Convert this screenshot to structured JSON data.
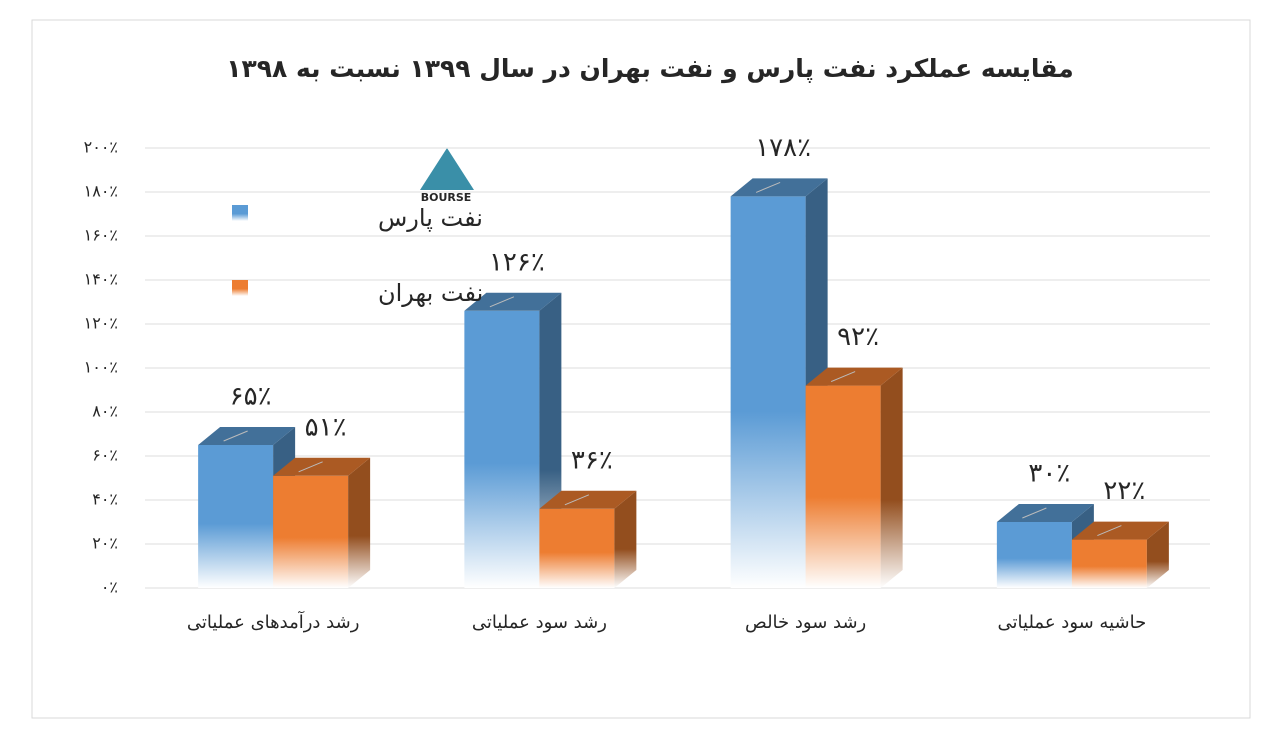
{
  "chart_data": {
    "type": "bar3d",
    "title": "مقایسه عملکرد نفت پارس و نفت بهران در سال ۱۳۹۹ نسبت به ۱۳۹۸",
    "logo": "BOURSE",
    "categories": [
      "رشد درآمدهای عملیاتی",
      "رشد سود عملیاتی",
      "رشد سود خالص",
      "حاشیه سود عملیاتی"
    ],
    "series": [
      {
        "name": "نفت پارس",
        "color": "#5b9bd5",
        "values": [
          65,
          126,
          178,
          30
        ],
        "value_labels": [
          "۶۵٪",
          "۱۲۶٪",
          "۱۷۸٪",
          "۳۰٪"
        ]
      },
      {
        "name": "نفت بهران",
        "color": "#ed7d31",
        "values": [
          51,
          36,
          92,
          22
        ],
        "value_labels": [
          "۵۱٪",
          "۳۶٪",
          "۹۲٪",
          "۲۲٪"
        ]
      }
    ],
    "ylim": [
      0,
      200
    ],
    "yticks": [
      {
        "value": 0,
        "label": "۰٪"
      },
      {
        "value": 20,
        "label": "۲۰٪"
      },
      {
        "value": 40,
        "label": "۴۰٪"
      },
      {
        "value": 60,
        "label": "۶۰٪"
      },
      {
        "value": 80,
        "label": "۸۰٪"
      },
      {
        "value": 100,
        "label": "۱۰۰٪"
      },
      {
        "value": 120,
        "label": "۱۲۰٪"
      },
      {
        "value": 140,
        "label": "۱۴۰٪"
      },
      {
        "value": 160,
        "label": "۱۶۰٪"
      },
      {
        "value": 180,
        "label": "۱۸۰٪"
      },
      {
        "value": 200,
        "label": "۲۰۰٪"
      }
    ],
    "grid": true,
    "legend": "upper left"
  }
}
